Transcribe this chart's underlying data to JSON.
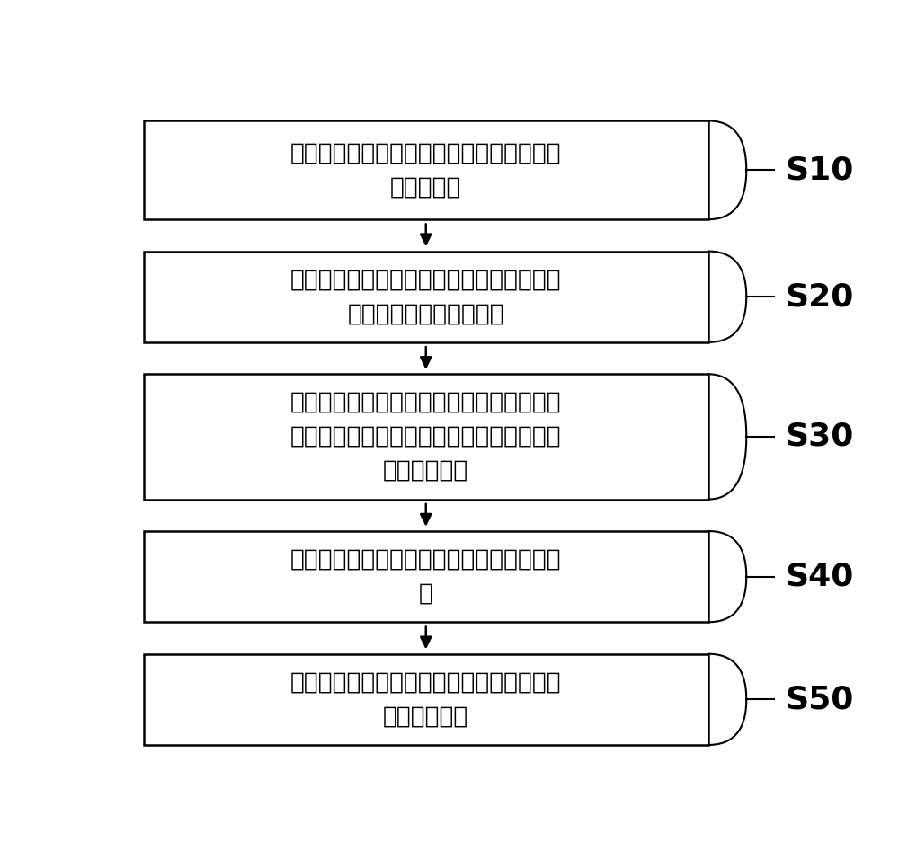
{
  "background_color": "#ffffff",
  "box_border_color": "#000000",
  "box_fill_color": "#ffffff",
  "arrow_color": "#000000",
  "label_color": "#000000",
  "font_size_box": 19,
  "font_size_label": 26,
  "boxes": [
    {
      "id": "S10",
      "label": "S10",
      "text": "将正极材料与抑制产气添加剂混合搅拌，获\n得正极浆料"
    },
    {
      "id": "S20",
      "label": "S20",
      "text": "将所述正极浆料涂布在正极集流体上，并进\n行烘干处理形成正极极片"
    },
    {
      "id": "S30",
      "label": "S30",
      "text": "将所述正极极片与匹配的负极极片、隔膜装\n配在电池壳体内，然后向电池壳体进行第一\n次注入电解液"
    },
    {
      "id": "S40",
      "label": "S40",
      "text": "在指定温度下静置指定时间后，进行化成处\n理"
    },
    {
      "id": "S50",
      "label": "S50",
      "text": "将所述电池壳体内的气体排出后，进行第二\n次注入电解液"
    }
  ]
}
